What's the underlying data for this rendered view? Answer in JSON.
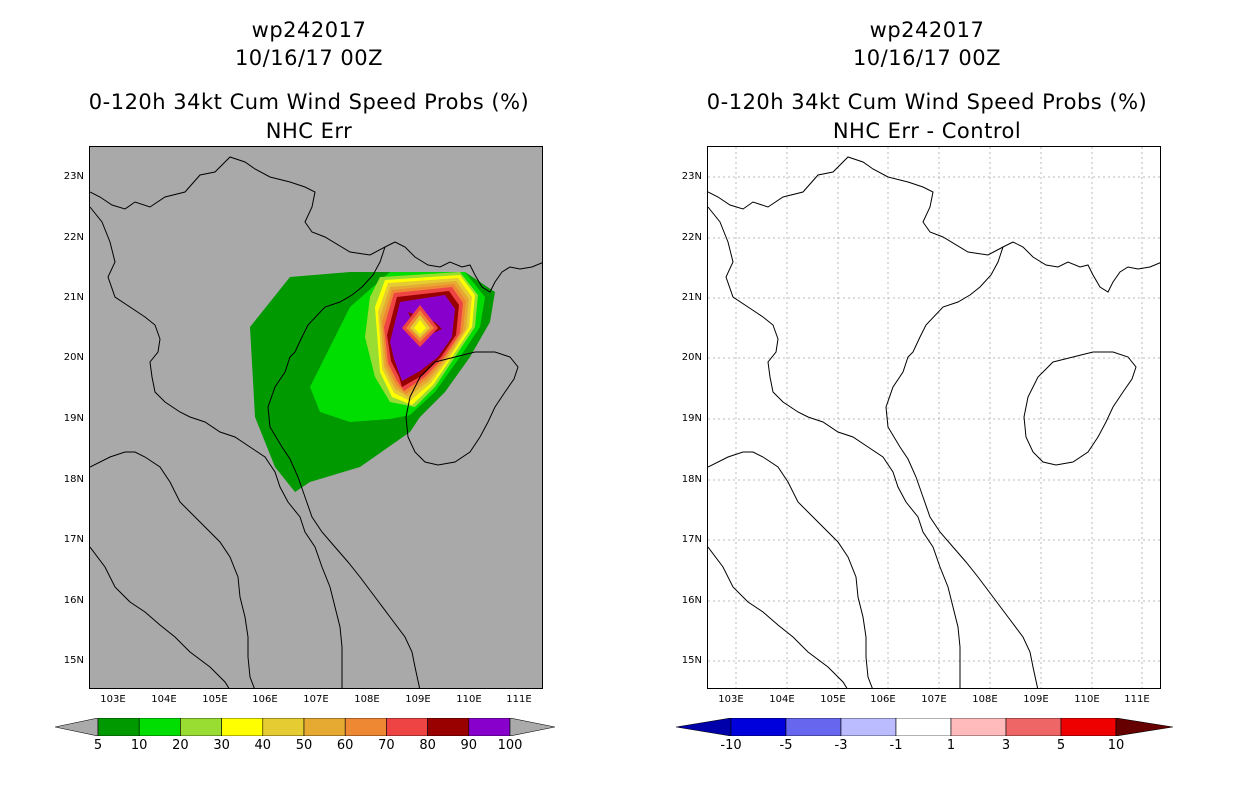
{
  "left": {
    "storm": "wp242017",
    "date": "10/16/17 00Z",
    "title": "0-120h 34kt Cum Wind Speed Probs (%)",
    "subtitle": "NHC Err",
    "lat_ticks": [
      "23N",
      "22N",
      "21N",
      "20N",
      "19N",
      "18N",
      "17N",
      "16N",
      "15N"
    ],
    "lon_ticks": [
      "103E",
      "104E",
      "105E",
      "106E",
      "107E",
      "108E",
      "109E",
      "110E",
      "111E"
    ],
    "colorbar": {
      "labels": [
        "5",
        "10",
        "20",
        "30",
        "40",
        "50",
        "60",
        "70",
        "80",
        "90",
        "100"
      ],
      "colors": [
        "#009900",
        "#00dd00",
        "#99dd33",
        "#ffff00",
        "#e6cc33",
        "#e6aa33",
        "#ee8833",
        "#ee4444",
        "#990000",
        "#8800cc"
      ],
      "under_color": "#aaaaaa",
      "over_color": "#aaaaaa"
    },
    "background_color": "#a9a9a9"
  },
  "right": {
    "storm": "wp242017",
    "date": "10/16/17 00Z",
    "title": "0-120h 34kt Cum Wind Speed Probs (%)",
    "subtitle": "NHC Err - Control",
    "lat_ticks": [
      "23N",
      "22N",
      "21N",
      "20N",
      "19N",
      "18N",
      "17N",
      "16N",
      "15N"
    ],
    "lon_ticks": [
      "103E",
      "104E",
      "105E",
      "106E",
      "107E",
      "108E",
      "109E",
      "110E",
      "111E"
    ],
    "colorbar": {
      "labels": [
        "-10",
        "-5",
        "-3",
        "-1",
        "1",
        "3",
        "5",
        "10"
      ],
      "colors": [
        "#0000dd",
        "#6666ee",
        "#bbbbff",
        "#ffffff",
        "#ffbbbb",
        "#ee6666",
        "#ee0000"
      ],
      "under_color": "#0000aa",
      "over_color": "#660000"
    },
    "background_color": "#ffffff"
  }
}
